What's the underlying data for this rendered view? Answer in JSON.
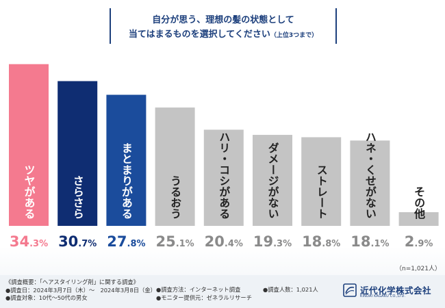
{
  "title": {
    "line1": "自分が思う、理想の髪の状態として",
    "line2": "当てはまるものを選択してください",
    "line2_small": "（上位3つまで）"
  },
  "sample_note": "（n=1,021人）",
  "chart_data": {
    "type": "bar",
    "categories": [
      "ツヤがある",
      "さらさら",
      "まとまりがある",
      "うるおう",
      "ハリ・コシがある",
      "ダメージがない",
      "ストレート",
      "ハネ・くせがない",
      "その他"
    ],
    "values": [
      34.3,
      30.7,
      27.8,
      25.1,
      20.4,
      19.3,
      18.8,
      18.1,
      2.9
    ],
    "value_labels": [
      "34.3%",
      "30.7%",
      "27.8%",
      "25.1%",
      "20.4%",
      "19.3%",
      "18.8%",
      "18.1%",
      "2.9%"
    ],
    "unit": "%",
    "ylim": [
      0,
      36
    ],
    "grid": false,
    "colors": [
      "#f47a8f",
      "#0f2d72",
      "#1b4c9c",
      "#c4c4c4",
      "#c4c4c4",
      "#c4c4c4",
      "#c4c4c4",
      "#c4c4c4",
      "#c4c4c4"
    ],
    "value_colors": [
      "#f47a8f",
      "#0f2d72",
      "#1b4c9c",
      "#8a8a8a",
      "#8a8a8a",
      "#8a8a8a",
      "#8a8a8a",
      "#8a8a8a",
      "#8a8a8a"
    ],
    "label_colors": [
      "#ffffff",
      "#ffffff",
      "#ffffff",
      "#222222",
      "#222222",
      "#222222",
      "#222222",
      "#222222",
      "#222222"
    ]
  },
  "footer": {
    "col1": [
      "《調査概要：「ヘアスタイリング剤」に関する調査》",
      "●調査日：2024年3月7日（木）〜　2024年3月8日（金）",
      "●調査対象：10代〜50代の男女"
    ],
    "col2": [
      "●調査方法：インターネット調査",
      "●モニター提供元：ゼネラルリサーチ"
    ],
    "col3": [
      "●調査人数：1,021人"
    ],
    "logo_name": "近代化学株式会社",
    "logo_sub": "KINDAI KAGAKU CO.,LTD."
  }
}
